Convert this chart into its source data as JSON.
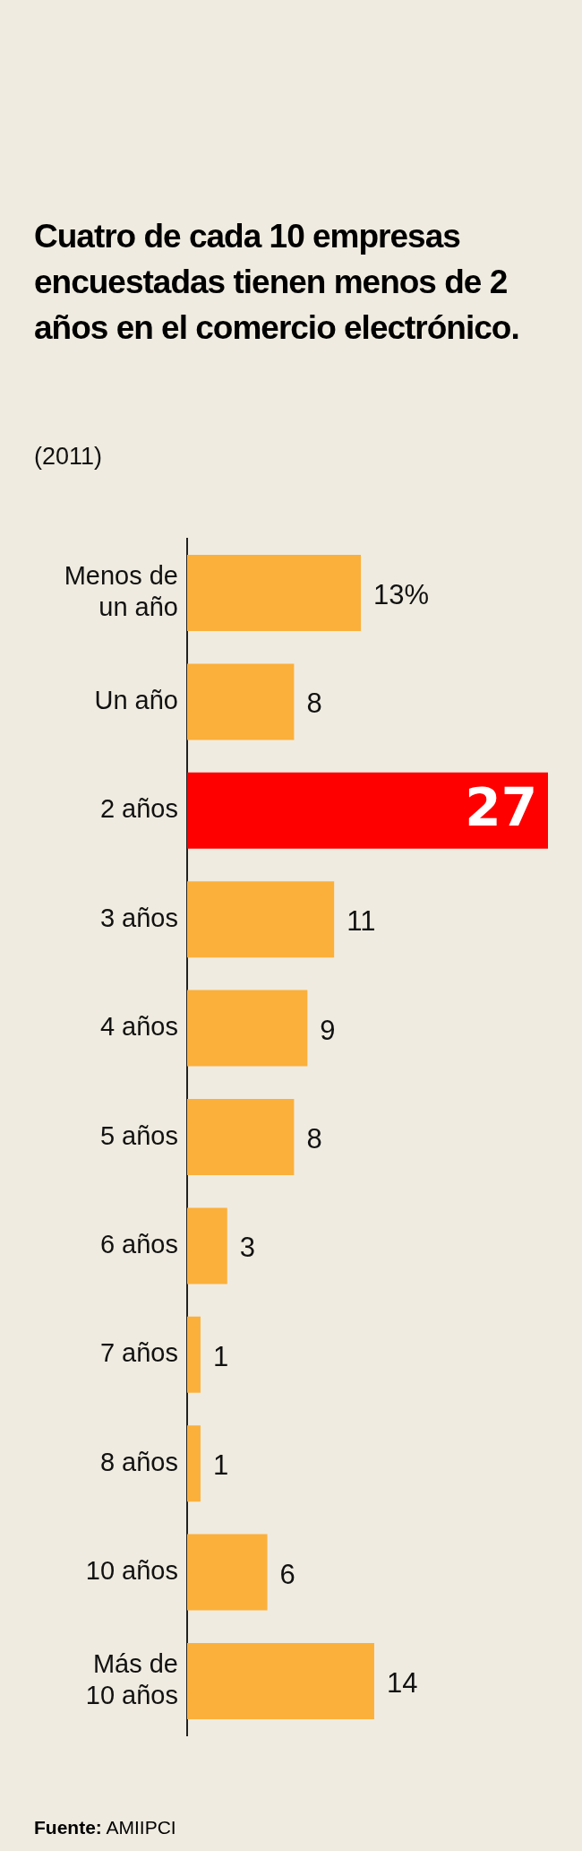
{
  "chart_data": {
    "type": "bar",
    "orientation": "horizontal",
    "title": "Cuatro de cada 10 empresas encuestadas tienen menos de 2 años en el comercio electrónico.",
    "subtitle": "(2011)",
    "categories": [
      "Menos de\nun año",
      "Un año",
      "2 años",
      "3 años",
      "4 años",
      "5 años",
      "6 años",
      "7 años",
      "8 años",
      "10 años",
      "Más de\n10 años"
    ],
    "values": [
      13,
      8,
      27,
      11,
      9,
      8,
      3,
      1,
      1,
      6,
      14
    ],
    "colors": [
      "#fbb03b",
      "#fbb03b",
      "#ff0000",
      "#fbb03b",
      "#fbb03b",
      "#fbb03b",
      "#fbb03b",
      "#fbb03b",
      "#fbb03b",
      "#fbb03b",
      "#fbb03b"
    ],
    "value_labels": [
      "13%",
      "8",
      "27",
      "11",
      "9",
      "8",
      "3",
      "1",
      "1",
      "6",
      "14"
    ],
    "grid": false,
    "legend": false,
    "annotations": [
      "Fuente: AMIIPCI"
    ]
  }
}
